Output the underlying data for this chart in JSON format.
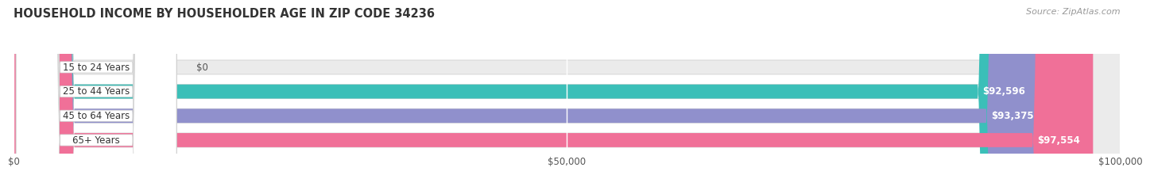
{
  "title": "HOUSEHOLD INCOME BY HOUSEHOLDER AGE IN ZIP CODE 34236",
  "source": "Source: ZipAtlas.com",
  "categories": [
    "15 to 24 Years",
    "25 to 44 Years",
    "45 to 64 Years",
    "65+ Years"
  ],
  "values": [
    0,
    92596,
    93375,
    97554
  ],
  "labels": [
    "$0",
    "$92,596",
    "$93,375",
    "$97,554"
  ],
  "bar_colors": [
    "#c9a8cc",
    "#3bbfb8",
    "#9090cc",
    "#f07098"
  ],
  "bar_bg_color": "#ebebeb",
  "xlim": [
    0,
    100000
  ],
  "xtick_values": [
    0,
    50000,
    100000
  ],
  "xtick_labels": [
    "$0",
    "$50,000",
    "$100,000"
  ],
  "title_fontsize": 10.5,
  "source_fontsize": 8,
  "label_fontsize": 8.5,
  "bar_height": 0.58,
  "background_color": "#ffffff",
  "grid_color": "#ffffff"
}
